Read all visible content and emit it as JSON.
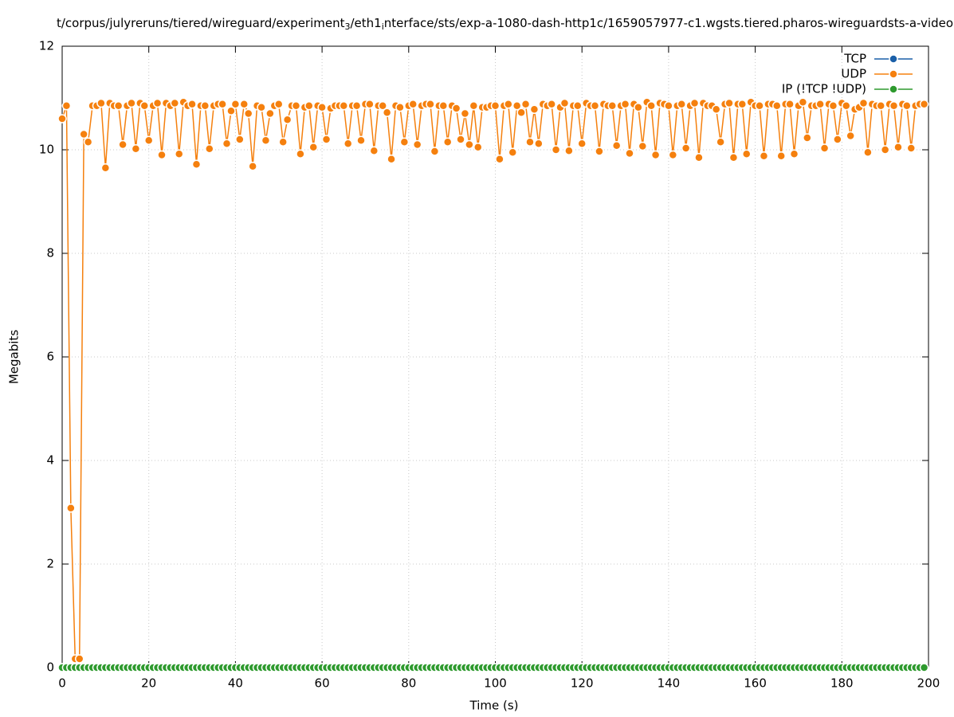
{
  "chart_data": {
    "type": "line",
    "title_parts": [
      "t/corpus/julyreruns/tiered/wireguard/experiment",
      "3",
      "/eth1",
      "i",
      "nterface/sts/exp-a-1080-dash-http1c/1659057977-c1.wgsts.tiered.pharos-wireguardsts-a-video"
    ],
    "xlabel": "Time (s)",
    "ylabel": "Megabits",
    "xlim": [
      0,
      200
    ],
    "xticks": [
      0,
      20,
      40,
      60,
      80,
      100,
      120,
      140,
      160,
      180,
      200
    ],
    "ylim": [
      0,
      12
    ],
    "yticks": [
      0,
      2,
      4,
      6,
      8,
      10,
      12
    ],
    "grid": true,
    "legend": "top right",
    "x": [
      0,
      1,
      2,
      3,
      4,
      5,
      6,
      7,
      8,
      9,
      10,
      11,
      12,
      13,
      14,
      15,
      16,
      17,
      18,
      19,
      20,
      21,
      22,
      23,
      24,
      25,
      26,
      27,
      28,
      29,
      30,
      31,
      32,
      33,
      34,
      35,
      36,
      37,
      38,
      39,
      40,
      41,
      42,
      43,
      44,
      45,
      46,
      47,
      48,
      49,
      50,
      51,
      52,
      53,
      54,
      55,
      56,
      57,
      58,
      59,
      60,
      61,
      62,
      63,
      64,
      65,
      66,
      67,
      68,
      69,
      70,
      71,
      72,
      73,
      74,
      75,
      76,
      77,
      78,
      79,
      80,
      81,
      82,
      83,
      84,
      85,
      86,
      87,
      88,
      89,
      90,
      91,
      92,
      93,
      94,
      95,
      96,
      97,
      98,
      99,
      100,
      101,
      102,
      103,
      104,
      105,
      106,
      107,
      108,
      109,
      110,
      111,
      112,
      113,
      114,
      115,
      116,
      117,
      118,
      119,
      120,
      121,
      122,
      123,
      124,
      125,
      126,
      127,
      128,
      129,
      130,
      131,
      132,
      133,
      134,
      135,
      136,
      137,
      138,
      139,
      140,
      141,
      142,
      143,
      144,
      145,
      146,
      147,
      148,
      149,
      150,
      151,
      152,
      153,
      154,
      155,
      156,
      157,
      158,
      159,
      160,
      161,
      162,
      163,
      164,
      165,
      166,
      167,
      168,
      169,
      170,
      171,
      172,
      173,
      174,
      175,
      176,
      177,
      178,
      179,
      180,
      181,
      182,
      183,
      184,
      185,
      186,
      187,
      188,
      189,
      190,
      191,
      192,
      193,
      194,
      195,
      196,
      197,
      198,
      199
    ],
    "series": [
      {
        "name": "TCP",
        "color": "#1a5fa8",
        "values": [
          0,
          0,
          0,
          0,
          0,
          0,
          0,
          0,
          0,
          0,
          0,
          0,
          0,
          0,
          0,
          0,
          0,
          0,
          0,
          0,
          0,
          0,
          0,
          0,
          0,
          0,
          0,
          0,
          0,
          0,
          0,
          0,
          0,
          0,
          0,
          0,
          0,
          0,
          0,
          0,
          0,
          0,
          0,
          0,
          0,
          0,
          0,
          0,
          0,
          0,
          0,
          0,
          0,
          0,
          0,
          0,
          0,
          0,
          0,
          0,
          0,
          0,
          0,
          0,
          0,
          0,
          0,
          0,
          0,
          0,
          0,
          0,
          0,
          0,
          0,
          0,
          0,
          0,
          0,
          0,
          0,
          0,
          0,
          0,
          0,
          0,
          0,
          0,
          0,
          0,
          0,
          0,
          0,
          0,
          0,
          0,
          0,
          0,
          0,
          0,
          0,
          0,
          0,
          0,
          0,
          0,
          0,
          0,
          0,
          0,
          0,
          0,
          0,
          0,
          0,
          0,
          0,
          0,
          0,
          0,
          0,
          0,
          0,
          0,
          0,
          0,
          0,
          0,
          0,
          0,
          0,
          0,
          0,
          0,
          0,
          0,
          0,
          0,
          0,
          0,
          0,
          0,
          0,
          0,
          0,
          0,
          0,
          0,
          0,
          0,
          0,
          0,
          0,
          0,
          0,
          0,
          0,
          0,
          0,
          0,
          0,
          0,
          0,
          0,
          0,
          0,
          0,
          0,
          0,
          0,
          0,
          0,
          0,
          0,
          0,
          0,
          0,
          0,
          0,
          0,
          0,
          0,
          0,
          0,
          0,
          0,
          0,
          0,
          0,
          0,
          0,
          0,
          0,
          0,
          0,
          0,
          0,
          0,
          0,
          0
        ]
      },
      {
        "name": "UDP",
        "color": "#f5800e",
        "values": [
          10.6,
          10.85,
          3.08,
          0.17,
          0.17,
          10.3,
          10.15,
          10.85,
          10.85,
          10.9,
          9.65,
          10.9,
          10.85,
          10.85,
          10.1,
          10.85,
          10.9,
          10.02,
          10.9,
          10.85,
          10.18,
          10.85,
          10.9,
          9.9,
          10.9,
          10.85,
          10.9,
          9.92,
          10.92,
          10.85,
          10.88,
          9.72,
          10.85,
          10.85,
          10.02,
          10.85,
          10.88,
          10.88,
          10.12,
          10.75,
          10.88,
          10.2,
          10.88,
          10.7,
          9.68,
          10.85,
          10.82,
          10.18,
          10.7,
          10.85,
          10.88,
          10.15,
          10.58,
          10.85,
          10.85,
          9.92,
          10.82,
          10.85,
          10.05,
          10.85,
          10.82,
          10.2,
          10.8,
          10.85,
          10.85,
          10.85,
          10.12,
          10.85,
          10.85,
          10.18,
          10.88,
          10.88,
          9.98,
          10.85,
          10.85,
          10.72,
          9.82,
          10.85,
          10.82,
          10.15,
          10.85,
          10.88,
          10.1,
          10.85,
          10.88,
          10.88,
          9.97,
          10.85,
          10.85,
          10.15,
          10.85,
          10.8,
          10.2,
          10.7,
          10.1,
          10.85,
          10.05,
          10.82,
          10.82,
          10.85,
          10.85,
          9.82,
          10.85,
          10.88,
          9.95,
          10.85,
          10.72,
          10.88,
          10.15,
          10.78,
          10.12,
          10.88,
          10.85,
          10.88,
          10.0,
          10.82,
          10.9,
          9.98,
          10.85,
          10.85,
          10.12,
          10.9,
          10.85,
          10.85,
          9.97,
          10.88,
          10.85,
          10.85,
          10.08,
          10.85,
          10.88,
          9.93,
          10.88,
          10.82,
          10.07,
          10.92,
          10.85,
          9.9,
          10.9,
          10.88,
          10.85,
          9.9,
          10.85,
          10.88,
          10.03,
          10.85,
          10.9,
          9.85,
          10.9,
          10.85,
          10.85,
          10.78,
          10.15,
          10.88,
          10.9,
          9.85,
          10.88,
          10.88,
          9.92,
          10.92,
          10.85,
          10.85,
          9.88,
          10.88,
          10.88,
          10.85,
          9.88,
          10.88,
          10.88,
          9.92,
          10.85,
          10.92,
          10.23,
          10.85,
          10.85,
          10.88,
          10.03,
          10.88,
          10.85,
          10.2,
          10.9,
          10.85,
          10.27,
          10.78,
          10.82,
          10.9,
          9.95,
          10.88,
          10.85,
          10.85,
          10.0,
          10.88,
          10.85,
          10.05,
          10.88,
          10.85,
          10.03,
          10.85,
          10.88,
          10.88
        ]
      },
      {
        "name": "IP (!TCP  !UDP)",
        "color": "#2e9a2e",
        "values": [
          0,
          0,
          0,
          0,
          0,
          0,
          0,
          0,
          0,
          0,
          0,
          0,
          0,
          0,
          0,
          0,
          0,
          0,
          0,
          0,
          0,
          0,
          0,
          0,
          0,
          0,
          0,
          0,
          0,
          0,
          0,
          0,
          0,
          0,
          0,
          0,
          0,
          0,
          0,
          0,
          0,
          0,
          0,
          0,
          0,
          0,
          0,
          0,
          0,
          0,
          0,
          0,
          0,
          0,
          0,
          0,
          0,
          0,
          0,
          0,
          0,
          0,
          0,
          0,
          0,
          0,
          0,
          0,
          0,
          0,
          0,
          0,
          0,
          0,
          0,
          0,
          0,
          0,
          0,
          0,
          0,
          0,
          0,
          0,
          0,
          0,
          0,
          0,
          0,
          0,
          0,
          0,
          0,
          0,
          0,
          0,
          0,
          0,
          0,
          0,
          0,
          0,
          0,
          0,
          0,
          0,
          0,
          0,
          0,
          0,
          0,
          0,
          0,
          0,
          0,
          0,
          0,
          0,
          0,
          0,
          0,
          0,
          0,
          0,
          0,
          0,
          0,
          0,
          0,
          0,
          0,
          0,
          0,
          0,
          0,
          0,
          0,
          0,
          0,
          0,
          0,
          0,
          0,
          0,
          0,
          0,
          0,
          0,
          0,
          0,
          0,
          0,
          0,
          0,
          0,
          0,
          0,
          0,
          0,
          0,
          0,
          0,
          0,
          0,
          0,
          0,
          0,
          0,
          0,
          0,
          0,
          0,
          0,
          0,
          0,
          0,
          0,
          0,
          0,
          0,
          0,
          0,
          0,
          0,
          0,
          0,
          0,
          0,
          0,
          0,
          0,
          0,
          0,
          0,
          0,
          0,
          0,
          0,
          0,
          0
        ]
      }
    ]
  }
}
